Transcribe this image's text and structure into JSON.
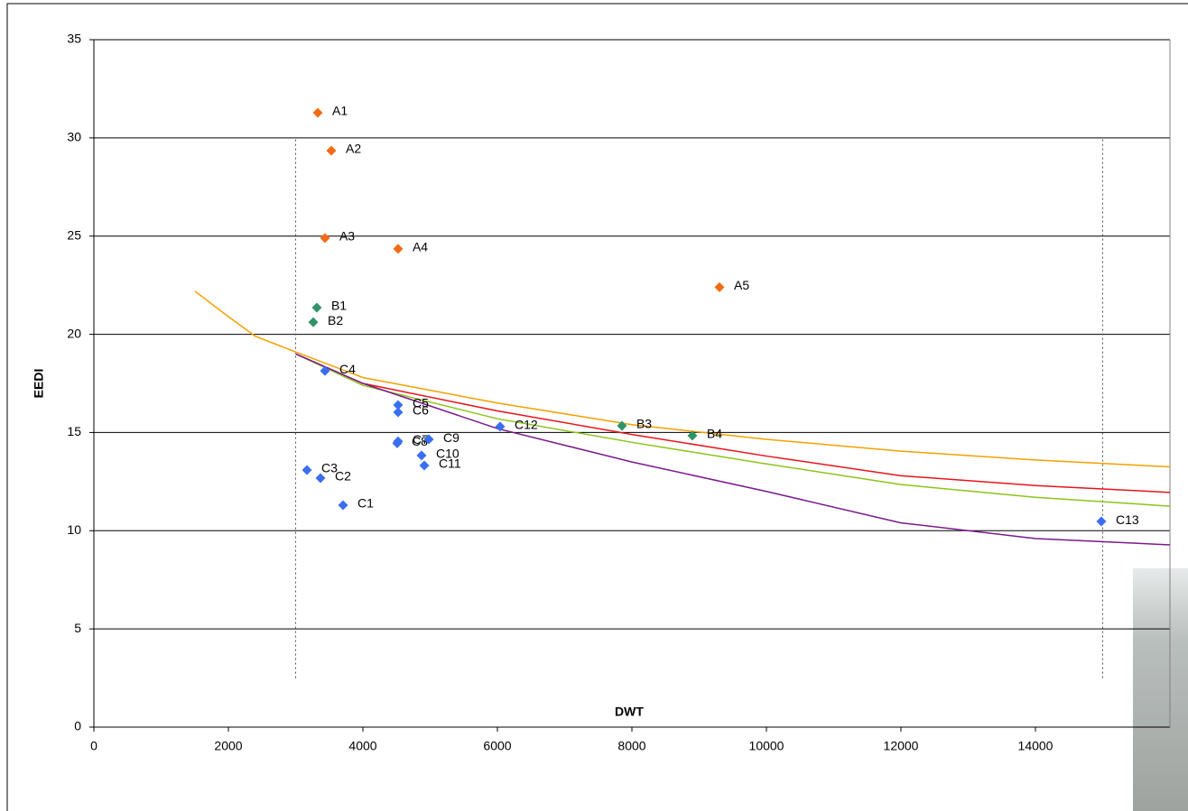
{
  "chart_data": {
    "type": "scatter",
    "xlabel": "DWT",
    "ylabel": "EEDI",
    "xlim": [
      0,
      16000
    ],
    "ylim": [
      0,
      35
    ],
    "xticks": [
      0,
      2000,
      4000,
      6000,
      8000,
      10000,
      12000,
      14000
    ],
    "yticks": [
      0,
      5,
      10,
      15,
      20,
      25,
      30,
      35
    ],
    "grid": true,
    "points": [
      {
        "label": "A1",
        "x": 3329,
        "y": 31.28,
        "color": "#f26b13"
      },
      {
        "label": "A2",
        "x": 3530,
        "y": 29.35,
        "color": "#f26b13"
      },
      {
        "label": "A3",
        "x": 3436,
        "y": 24.9,
        "color": "#f26b13"
      },
      {
        "label": "A4",
        "x": 4523,
        "y": 24.35,
        "color": "#f26b13"
      },
      {
        "label": "A5",
        "x": 9302,
        "y": 22.4,
        "color": "#f26b13"
      },
      {
        "label": "B1",
        "x": 3315,
        "y": 21.36,
        "color": "#2e9468"
      },
      {
        "label": "B2",
        "x": 3262,
        "y": 20.62,
        "color": "#2e9468"
      },
      {
        "label": "B3",
        "x": 7852,
        "y": 15.34,
        "color": "#2e9468"
      },
      {
        "label": "B4",
        "x": 8899,
        "y": 14.84,
        "color": "#2e9468"
      },
      {
        "label": "C1",
        "x": 3705,
        "y": 11.3,
        "color": "#3a6ef0"
      },
      {
        "label": "C2",
        "x": 3369,
        "y": 12.68,
        "color": "#3a6ef0"
      },
      {
        "label": "C3",
        "x": 3168,
        "y": 13.09,
        "color": "#3a6ef0"
      },
      {
        "label": "C4",
        "x": 3436,
        "y": 18.14,
        "color": "#3a6ef0"
      },
      {
        "label": "C5",
        "x": 4523,
        "y": 16.4,
        "color": "#3a6ef0"
      },
      {
        "label": "C6",
        "x": 4523,
        "y": 16.03,
        "color": "#3a6ef0"
      },
      {
        "label": "C7",
        "x": 4523,
        "y": 14.55,
        "color": "#3a6ef0"
      },
      {
        "label": "C8",
        "x": 4510,
        "y": 14.45,
        "color": "#3a6ef0"
      },
      {
        "label": "C9",
        "x": 4980,
        "y": 14.65,
        "color": "#3a6ef0"
      },
      {
        "label": "C10",
        "x": 4872,
        "y": 13.83,
        "color": "#3a6ef0"
      },
      {
        "label": "C11",
        "x": 4913,
        "y": 13.32,
        "color": "#3a6ef0"
      },
      {
        "label": "C12",
        "x": 6040,
        "y": 15.3,
        "color": "#3a6ef0"
      },
      {
        "label": "C13",
        "x": 14980,
        "y": 10.47,
        "color": "#3a6ef0"
      }
    ],
    "lines": [
      {
        "color": "#f5a000",
        "x": [
          1500,
          2000,
          2400,
          3000,
          4000,
          6000,
          8000,
          10000,
          12000,
          14000,
          16000
        ],
        "values": [
          22.2,
          20.9,
          19.9,
          19.1,
          17.8,
          16.5,
          15.4,
          14.65,
          14.05,
          13.6,
          13.25
        ]
      },
      {
        "color": "#e8141c",
        "x": [
          3000,
          4000,
          6000,
          8000,
          10000,
          12000,
          14000,
          16000
        ],
        "values": [
          19.0,
          17.5,
          16.1,
          14.9,
          13.8,
          12.8,
          12.3,
          11.95
        ]
      },
      {
        "color": "#8cc41c",
        "x": [
          3000,
          4000,
          6000,
          8000,
          10000,
          12000,
          14000,
          16000
        ],
        "values": [
          19.0,
          17.4,
          15.7,
          14.5,
          13.4,
          12.35,
          11.7,
          11.25
        ]
      },
      {
        "color": "#7a1a8c",
        "x": [
          3000,
          4000,
          6000,
          8000,
          10000,
          12000,
          14000,
          16000
        ],
        "values": [
          19.0,
          17.5,
          15.2,
          13.5,
          12.0,
          10.4,
          9.6,
          9.28
        ]
      }
    ],
    "vlines": [
      {
        "x": 3000,
        "y": [
          2.5,
          30
        ]
      },
      {
        "x": 15000,
        "y": [
          2.5,
          30
        ]
      }
    ]
  }
}
